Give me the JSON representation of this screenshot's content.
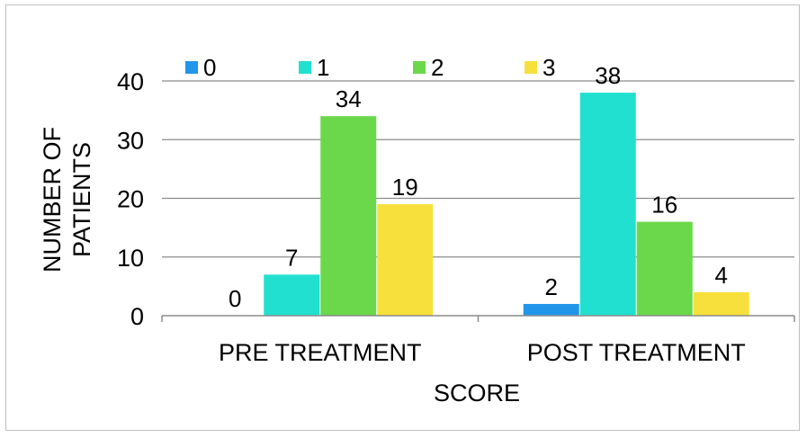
{
  "chart_data": {
    "type": "bar",
    "title": "",
    "xlabel": "SCORE",
    "ylabel_lines": [
      "NUMBER OF",
      "PATIENTS"
    ],
    "categories": [
      "PRE TREATMENT",
      "POST TREATMENT"
    ],
    "series": [
      {
        "name": "0",
        "color": "#2196e8",
        "values": [
          0,
          2
        ]
      },
      {
        "name": "1",
        "color": "#22e0cf",
        "values": [
          7,
          38
        ]
      },
      {
        "name": "2",
        "color": "#6ad84a",
        "values": [
          34,
          16
        ]
      },
      {
        "name": "3",
        "color": "#f7e03c",
        "values": [
          19,
          4
        ]
      }
    ],
    "ylim": [
      0,
      40
    ],
    "yticks": [
      0,
      10,
      20,
      30,
      40
    ],
    "grid": true,
    "legend_position": "top"
  }
}
